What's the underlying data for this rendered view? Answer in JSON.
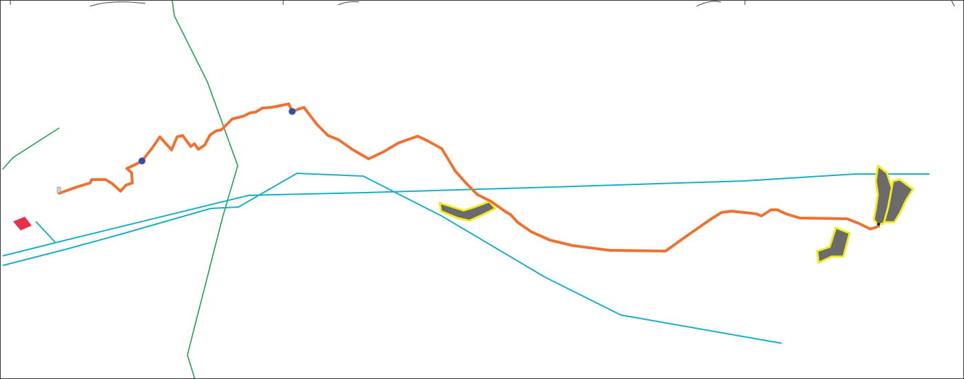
{
  "map": {
    "colors": {
      "background": "#ffffff",
      "border": "#333333",
      "route": "#f07030",
      "waypoint": "#2f4fa8",
      "trail_green": "#1aa050",
      "trail_cyan": "#14aec8",
      "area_fill": "#6b6b6b",
      "area_outline": "#f0ec20",
      "building": "#e8304a",
      "start_marker": "#cfcfcf"
    },
    "icons": [
      "waypoint-marker-icon",
      "start-marker-icon"
    ],
    "layers": [
      "route",
      "waypoints",
      "trails",
      "protected-areas",
      "buildings"
    ]
  }
}
